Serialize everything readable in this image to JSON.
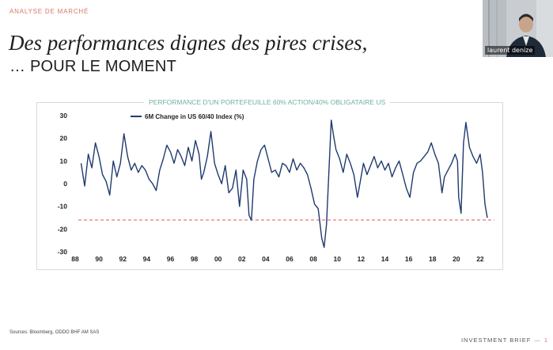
{
  "header": {
    "section_label": "ANALYSE DE MARCHÉ",
    "title_line1": "Des performances dignes des pires crises,",
    "title_line2": "… POUR LE MOMENT"
  },
  "video": {
    "speaker_name": "laurent denize"
  },
  "footer": {
    "sources": "Sources: Bloomberg, ODDO BHF AM SAS",
    "brand": "INVESTMENT BRIEF",
    "dash": "—",
    "page": "1"
  },
  "colors": {
    "accent": "#d4786a",
    "chart_title": "#6fb0a6",
    "series": "#1f3a6e",
    "reference_line": "#e05a5a"
  },
  "chart_data": {
    "type": "line",
    "title": "PERFORMANCE D'UN PORTEFEUILLE 60% ACTION/40% OBLIGATAIRE US",
    "legend_placement": "top-left",
    "grid": false,
    "xlabel": "",
    "ylabel": "",
    "xlim": [
      1988,
      2023.2
    ],
    "ylim": [
      -30,
      30
    ],
    "x_ticks": [
      "88",
      "90",
      "92",
      "94",
      "96",
      "98",
      "00",
      "02",
      "04",
      "06",
      "08",
      "10",
      "12",
      "14",
      "16",
      "18",
      "20",
      "22"
    ],
    "y_ticks": [
      "30",
      "20",
      "10",
      "0",
      "-10",
      "-20",
      "-30"
    ],
    "reference_line": {
      "y": -16,
      "style": "dashed"
    },
    "series": [
      {
        "name": "6M Change in US 60/40 Index (%)",
        "x": [
          1988.5,
          1988.8,
          1989.1,
          1989.4,
          1989.7,
          1990.0,
          1990.3,
          1990.6,
          1990.9,
          1991.2,
          1991.5,
          1991.8,
          1992.1,
          1992.4,
          1992.7,
          1993.0,
          1993.3,
          1993.6,
          1993.9,
          1994.2,
          1994.5,
          1994.8,
          1995.1,
          1995.4,
          1995.7,
          1996.0,
          1996.3,
          1996.6,
          1996.9,
          1997.2,
          1997.5,
          1997.8,
          1998.1,
          1998.4,
          1998.6,
          1998.8,
          1999.1,
          1999.4,
          1999.7,
          2000.0,
          2000.3,
          2000.6,
          2000.9,
          2001.2,
          2001.5,
          2001.8,
          2002.1,
          2002.4,
          2002.6,
          2002.8,
          2003.0,
          2003.3,
          2003.6,
          2003.9,
          2004.2,
          2004.5,
          2004.8,
          2005.1,
          2005.4,
          2005.7,
          2006.0,
          2006.3,
          2006.6,
          2006.9,
          2007.2,
          2007.5,
          2007.8,
          2008.1,
          2008.4,
          2008.7,
          2008.9,
          2009.1,
          2009.3,
          2009.5,
          2009.7,
          2009.9,
          2010.2,
          2010.5,
          2010.8,
          2011.1,
          2011.4,
          2011.7,
          2011.9,
          2012.2,
          2012.5,
          2012.8,
          2013.1,
          2013.4,
          2013.7,
          2014.0,
          2014.3,
          2014.6,
          2014.9,
          2015.2,
          2015.5,
          2015.8,
          2016.1,
          2016.4,
          2016.7,
          2017.0,
          2017.3,
          2017.6,
          2017.9,
          2018.2,
          2018.5,
          2018.8,
          2019.0,
          2019.3,
          2019.6,
          2019.9,
          2020.1,
          2020.2,
          2020.4,
          2020.6,
          2020.8,
          2021.1,
          2021.4,
          2021.7,
          2022.0,
          2022.2,
          2022.4,
          2022.6
        ],
        "y": [
          9,
          -1,
          13,
          7,
          18,
          12,
          4,
          1,
          -5,
          10,
          3,
          9,
          22,
          12,
          6,
          9,
          5,
          8,
          6,
          2,
          0,
          -3,
          6,
          11,
          17,
          14,
          9,
          15,
          12,
          8,
          16,
          10,
          19,
          13,
          2,
          5,
          12,
          23,
          9,
          4,
          0,
          8,
          -4,
          -2,
          6,
          -10,
          6,
          2,
          -14,
          -16,
          2,
          10,
          15,
          17,
          11,
          5,
          6,
          3,
          9,
          8,
          5,
          11,
          6,
          9,
          7,
          4,
          -2,
          -9,
          -11,
          -24,
          -28,
          -18,
          5,
          28,
          21,
          15,
          11,
          5,
          13,
          9,
          4,
          -6,
          0,
          9,
          4,
          8,
          12,
          7,
          10,
          6,
          9,
          3,
          7,
          10,
          4,
          -2,
          -6,
          5,
          9,
          10,
          12,
          14,
          18,
          13,
          9,
          -4,
          3,
          6,
          9,
          13,
          10,
          -6,
          -13,
          18,
          27,
          16,
          12,
          9,
          13,
          5,
          -9,
          -15
        ]
      }
    ]
  }
}
